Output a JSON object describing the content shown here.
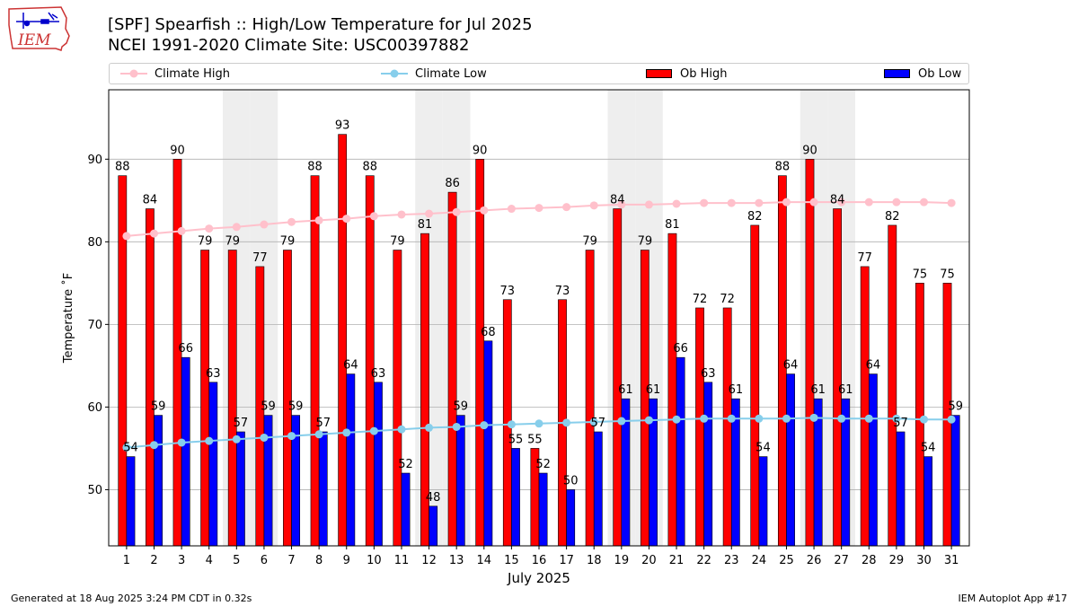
{
  "header": {
    "title_line1": "[SPF] Spearfish :: High/Low Temperature for Jul 2025",
    "title_line2": "NCEI 1991-2020 Climate Site: USC00397882",
    "logo_text": "IEM"
  },
  "footer": {
    "left": "Generated at 18 Aug 2025 3:24 PM CDT in 0.32s",
    "right": "IEM Autoplot App #17"
  },
  "colors": {
    "ob_high": "#ff0000",
    "ob_low": "#0000ff",
    "climate_high": "#ffc0cb",
    "climate_low": "#87ceeb",
    "weekend_shade": "#eeeeee",
    "grid": "#b0b0b0"
  },
  "chart_data": {
    "type": "bar",
    "xlabel": "July 2025",
    "ylabel": "Temperature ˚F",
    "ylim": [
      43.2,
      98.4
    ],
    "yticks": [
      50,
      60,
      70,
      80,
      90
    ],
    "grid": "horizontal",
    "legend_position": "top",
    "categories": [
      "1",
      "2",
      "3",
      "4",
      "5",
      "6",
      "7",
      "8",
      "9",
      "10",
      "11",
      "12",
      "13",
      "14",
      "15",
      "16",
      "17",
      "18",
      "19",
      "20",
      "21",
      "22",
      "23",
      "24",
      "25",
      "26",
      "27",
      "28",
      "29",
      "30",
      "31"
    ],
    "shaded_days": [
      5,
      6,
      12,
      13,
      19,
      20,
      26,
      27
    ],
    "series": [
      {
        "name": "Ob High",
        "kind": "bar",
        "values": [
          88,
          84,
          90,
          79,
          79,
          77,
          79,
          88,
          93,
          88,
          79,
          81,
          86,
          90,
          73,
          55,
          73,
          79,
          84,
          79,
          81,
          72,
          72,
          82,
          88,
          90,
          84,
          77,
          82,
          75,
          75
        ]
      },
      {
        "name": "Ob Low",
        "kind": "bar",
        "values": [
          54,
          59,
          66,
          63,
          57,
          59,
          59,
          57,
          64,
          63,
          52,
          48,
          59,
          68,
          55,
          52,
          50,
          57,
          61,
          61,
          66,
          63,
          61,
          54,
          64,
          61,
          61,
          64,
          57,
          54,
          59
        ]
      },
      {
        "name": "Climate High",
        "kind": "line",
        "values": [
          80.7,
          81.0,
          81.3,
          81.6,
          81.8,
          82.1,
          82.4,
          82.6,
          82.8,
          83.1,
          83.3,
          83.4,
          83.6,
          83.8,
          84.0,
          84.1,
          84.2,
          84.4,
          84.5,
          84.5,
          84.6,
          84.7,
          84.7,
          84.7,
          84.8,
          84.8,
          84.8,
          84.8,
          84.8,
          84.8,
          84.7
        ]
      },
      {
        "name": "Climate Low",
        "kind": "line",
        "values": [
          55.1,
          55.4,
          55.7,
          55.9,
          56.1,
          56.3,
          56.5,
          56.7,
          56.9,
          57.1,
          57.3,
          57.5,
          57.6,
          57.8,
          57.9,
          58.0,
          58.1,
          58.2,
          58.3,
          58.4,
          58.5,
          58.6,
          58.6,
          58.6,
          58.6,
          58.7,
          58.6,
          58.6,
          58.6,
          58.5,
          58.5
        ]
      }
    ]
  }
}
